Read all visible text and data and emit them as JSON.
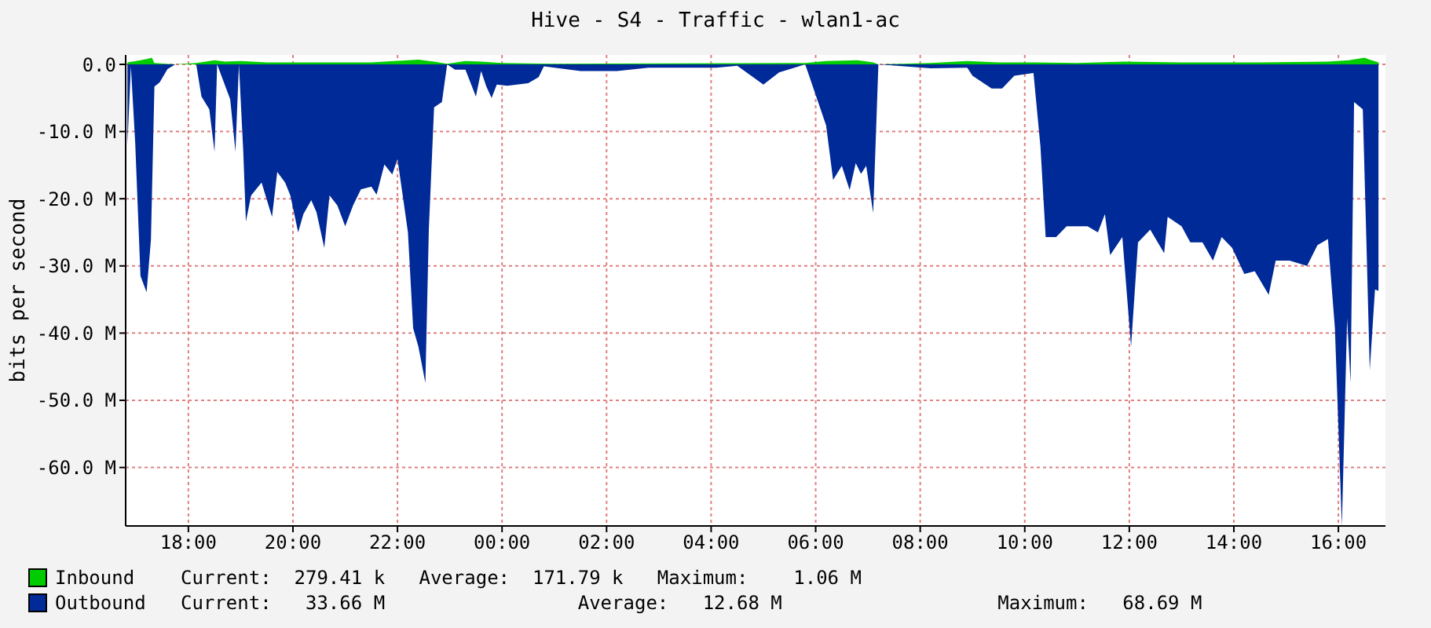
{
  "chart_data": {
    "type": "area",
    "title": "Hive - S4 - Traffic - wlan1-ac",
    "ylabel": "bits per second",
    "xlim": [
      "--01-01T16:48",
      "--01-02T16:54"
    ],
    "xticks": [
      {
        "value": "--01-01T18:00",
        "label": "18:00"
      },
      {
        "value": "--01-01T20:00",
        "label": "20:00"
      },
      {
        "value": "--01-01T22:00",
        "label": "22:00"
      },
      {
        "value": "--01-02T00:00",
        "label": "00:00"
      },
      {
        "value": "--01-02T02:00",
        "label": "02:00"
      },
      {
        "value": "--01-02T04:00",
        "label": "04:00"
      },
      {
        "value": "--01-02T06:00",
        "label": "06:00"
      },
      {
        "value": "--01-02T08:00",
        "label": "08:00"
      },
      {
        "value": "--01-02T10:00",
        "label": "10:00"
      },
      {
        "value": "--01-02T12:00",
        "label": "12:00"
      },
      {
        "value": "--01-02T14:00",
        "label": "14:00"
      },
      {
        "value": "--01-02T16:00",
        "label": "16:00"
      }
    ],
    "ylim": [
      -68.7,
      1.4
    ],
    "yticks": [
      {
        "value": 0,
        "label": "0.0"
      },
      {
        "value": -10,
        "label": "-10.0 M"
      },
      {
        "value": -20,
        "label": "-20.0 M"
      },
      {
        "value": -30,
        "label": "-30.0 M"
      },
      {
        "value": -40,
        "label": "-40.0 M"
      },
      {
        "value": -50,
        "label": "-50.0 M"
      },
      {
        "value": -60,
        "label": "-60.0 M"
      }
    ],
    "grid": true,
    "legend": "bottom",
    "series": [
      {
        "name": "Inbound",
        "color": "#00cc00",
        "x": [
          "--01-01T16:50",
          "--01-01T17:00",
          "--01-01T17:12",
          "--01-01T17:18",
          "--01-01T17:21",
          "--01-01T17:45",
          "--01-01T18:09",
          "--01-01T18:30",
          "--01-01T18:42",
          "--01-01T19:00",
          "--01-01T19:30",
          "--01-01T20:30",
          "--01-01T21:30",
          "--01-01T22:12",
          "--01-01T22:24",
          "--01-01T22:42",
          "--01-01T22:57",
          "--01-01T23:18",
          "--01-01T23:36",
          "--01-02T00:00",
          "--01-02T01:00",
          "--01-02T05:48",
          "--01-02T06:12",
          "--01-02T06:48",
          "--01-02T07:06",
          "--01-02T07:12",
          "--01-02T08:12",
          "--01-02T08:54",
          "--01-02T09:30",
          "--01-02T10:12",
          "--01-02T11:00",
          "--01-02T11:54",
          "--01-02T13:00",
          "--01-02T14:30",
          "--01-02T15:48",
          "--01-02T16:12",
          "--01-02T16:30",
          "--01-02T16:36",
          "--01-02T16:46"
        ],
        "values": [
          0.3,
          0.5,
          0.8,
          1.0,
          0.2,
          0,
          0.2,
          0.6,
          0.4,
          0.5,
          0.3,
          0.3,
          0.3,
          0.6,
          0.7,
          0.4,
          0.1,
          0.5,
          0.4,
          0.2,
          0.1,
          0.2,
          0.5,
          0.6,
          0.3,
          0,
          0.2,
          0.5,
          0.3,
          0.3,
          0.2,
          0.4,
          0.3,
          0.3,
          0.4,
          0.6,
          1.0,
          0.7,
          0.3
        ]
      },
      {
        "name": "Outbound",
        "color": "#002a97",
        "x": [
          "--01-01T16:50",
          "--01-01T16:54",
          "--01-01T16:59",
          "--01-01T17:05",
          "--01-01T17:12",
          "--01-01T17:17",
          "--01-01T17:21",
          "--01-01T17:27",
          "--01-01T17:36",
          "--01-01T17:45",
          "--01-01T18:09",
          "--01-01T18:15",
          "--01-01T18:24",
          "--01-01T18:30",
          "--01-01T18:33",
          "--01-01T18:48",
          "--01-01T18:54",
          "--01-01T18:58",
          "--01-01T19:03",
          "--01-01T19:06",
          "--01-01T19:12",
          "--01-01T19:24",
          "--01-01T19:36",
          "--01-01T19:42",
          "--01-01T19:51",
          "--01-01T19:57",
          "--01-01T20:06",
          "--01-01T20:12",
          "--01-01T20:21",
          "--01-01T20:27",
          "--01-01T20:36",
          "--01-01T20:42",
          "--01-01T20:51",
          "--01-01T21:00",
          "--01-01T21:09",
          "--01-01T21:18",
          "--01-01T21:30",
          "--01-01T21:36",
          "--01-01T21:45",
          "--01-01T21:54",
          "--01-01T22:00",
          "--01-01T22:06",
          "--01-01T22:12",
          "--01-01T22:18",
          "--01-01T22:24",
          "--01-01T22:32",
          "--01-01T22:36",
          "--01-01T22:42",
          "--01-01T22:51",
          "--01-01T22:57",
          "--01-01T23:06",
          "--01-01T23:18",
          "--01-01T23:30",
          "--01-01T23:36",
          "--01-01T23:42",
          "--01-01T23:48",
          "--01-01T23:54",
          "--01-02T00:06",
          "--01-02T00:30",
          "--01-02T00:42",
          "--01-02T00:48",
          "--01-02T01:30",
          "--01-02T02:12",
          "--01-02T02:48",
          "--01-02T03:30",
          "--01-02T04:06",
          "--01-02T04:30",
          "--01-02T05:00",
          "--01-02T05:18",
          "--01-02T05:48",
          "--01-02T06:12",
          "--01-02T06:20",
          "--01-02T06:30",
          "--01-02T06:39",
          "--01-02T06:46",
          "--01-02T06:52",
          "--01-02T06:58",
          "--01-02T07:06",
          "--01-02T07:12",
          "--01-02T08:12",
          "--01-02T08:54",
          "--01-02T09:00",
          "--01-02T09:22",
          "--01-02T09:34",
          "--01-02T09:48",
          "--01-02T10:10",
          "--01-02T10:18",
          "--01-02T10:24",
          "--01-02T10:36",
          "--01-02T10:48",
          "--01-02T11:12",
          "--01-02T11:24",
          "--01-02T11:32",
          "--01-02T11:38",
          "--01-02T11:52",
          "--01-02T12:02",
          "--01-02T12:10",
          "--01-02T12:24",
          "--01-02T12:40",
          "--01-02T12:44",
          "--01-02T13:00",
          "--01-02T13:10",
          "--01-02T13:24",
          "--01-02T13:36",
          "--01-02T13:46",
          "--01-02T13:58",
          "--01-02T14:12",
          "--01-02T14:24",
          "--01-02T14:40",
          "--01-02T14:48",
          "--01-02T15:04",
          "--01-02T15:24",
          "--01-02T15:36",
          "--01-02T15:48",
          "--01-02T15:56",
          "--01-02T16:04",
          "--01-02T16:10",
          "--01-02T16:14",
          "--01-02T16:18",
          "--01-02T16:28",
          "--01-02T16:32",
          "--01-02T16:36",
          "--01-02T16:42",
          "--01-02T16:46"
        ],
        "values": [
          -12,
          -0.3,
          -11.8,
          -31.5,
          -33.9,
          -26.1,
          -3.3,
          -2.7,
          -0.7,
          0,
          0,
          -4.8,
          -6.7,
          -13,
          0,
          -5.2,
          -13,
          0,
          -13,
          -23.4,
          -19.5,
          -17.6,
          -22.7,
          -16,
          -17.6,
          -19.5,
          -25,
          -22.3,
          -20.2,
          -22,
          -27.3,
          -19.5,
          -21,
          -24.1,
          -21,
          -18.6,
          -18.2,
          -19.4,
          -14.9,
          -16.4,
          -14.1,
          -19.5,
          -25,
          -39.3,
          -42,
          -47.4,
          -24.5,
          -6.4,
          -5.6,
          0,
          -0.8,
          -0.8,
          -4.8,
          -1,
          -3.3,
          -5,
          -3,
          -3.2,
          -2.8,
          -1.9,
          -0.3,
          -1,
          -1,
          -0.5,
          -0.5,
          -0.5,
          -0.2,
          -3,
          -1.2,
          0,
          -9.1,
          -17.2,
          -15.1,
          -18.7,
          -14.7,
          -16.3,
          -15.1,
          -22.1,
          0,
          -0.6,
          -0.5,
          -1.7,
          -3.6,
          -3.6,
          -1.7,
          -1.3,
          -12.2,
          -25.7,
          -25.7,
          -24.1,
          -24.1,
          -25,
          -22.3,
          -28.4,
          -25.7,
          -42,
          -26.5,
          -24.6,
          -28.1,
          -22.7,
          -24.1,
          -26.5,
          -26.5,
          -29.2,
          -25.7,
          -27.3,
          -31.2,
          -30.8,
          -34.3,
          -29.2,
          -29.2,
          -30,
          -26.9,
          -26,
          -39.3,
          -68.7,
          -37.8,
          -47.4,
          -5.6,
          -6.7,
          -25.7,
          -45.5,
          -33.5,
          -33.7
        ]
      }
    ],
    "annotations": [
      "Current:  279.41 k   Average:  171.79 k   Maximum:    1.06 M",
      "Current:   33.66 M                 Average:   12.68 M                   Maximum:   68.69 M"
    ]
  }
}
